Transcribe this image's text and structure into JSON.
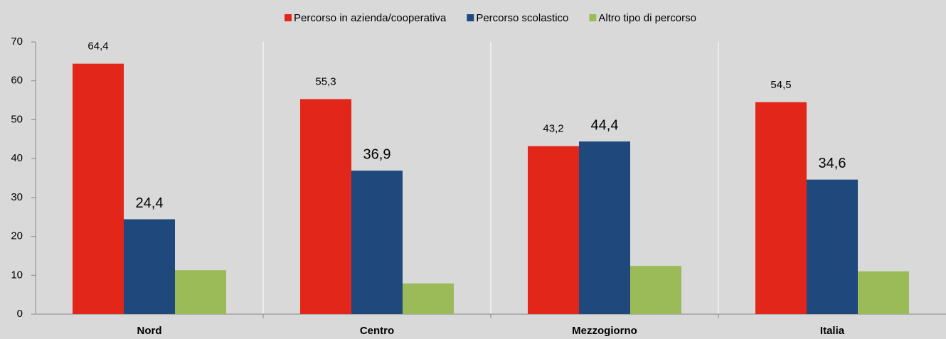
{
  "chart_data": {
    "type": "bar",
    "categories": [
      "Nord",
      "Centro",
      "Mezzogiorno",
      "Italia"
    ],
    "series": [
      {
        "name": "Percorso in azienda/cooperativa",
        "color": "#e3261a",
        "values": [
          64.4,
          55.3,
          43.2,
          54.5
        ],
        "value_labels": [
          "64,4",
          "55,3",
          "43,2",
          "54,5"
        ]
      },
      {
        "name": "Percorso scolastico",
        "color": "#1f497d",
        "values": [
          24.4,
          36.9,
          44.4,
          34.6
        ],
        "value_labels": [
          "24,4",
          "36,9",
          "44,4",
          "34,6"
        ]
      },
      {
        "name": "Altro tipo di percorso",
        "color": "#9bbb59",
        "values": [
          11.3,
          7.9,
          12.4,
          11.0
        ]
      }
    ],
    "ylim": [
      0,
      70
    ],
    "yticks": [
      0,
      10,
      20,
      30,
      40,
      50,
      60,
      70
    ],
    "grid": false,
    "legend": "top"
  }
}
